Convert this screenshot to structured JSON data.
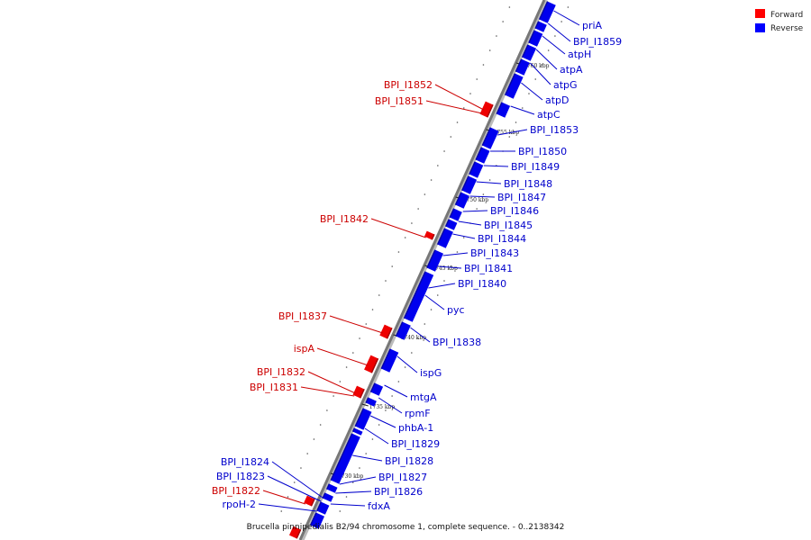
{
  "legend": [
    {
      "label": "Forward",
      "color": "#ff0000"
    },
    {
      "label": "Reverse",
      "color": "#0000ff"
    }
  ],
  "caption": "Brucella pinnipedialis B2/94 chromosome 1, complete sequence. - 0..2138342",
  "kbp_labels": [
    "1760 kbp",
    "1755 kbp",
    "1750 kbp",
    "1745 kbp",
    "1740 kbp",
    "1735 kbp",
    "1730 kbp"
  ],
  "reverse_genes": [
    "priA",
    "BPI_I1859",
    "atpH",
    "atpA",
    "atpG",
    "atpD",
    "atpC",
    "BPI_I1853",
    "BPI_I1850",
    "BPI_I1849",
    "BPI_I1848",
    "BPI_I1847",
    "BPI_I1846",
    "BPI_I1845",
    "BPI_I1844",
    "BPI_I1843",
    "BPI_I1841",
    "BPI_I1840",
    "pyc",
    "BPI_I1838",
    "ispG",
    "mtgA",
    "rpmF",
    "phbA-1",
    "BPI_I1829",
    "BPI_I1828",
    "BPI_I1827",
    "BPI_I1826",
    "fdxA"
  ],
  "forward_genes": [
    "BPI_I1852",
    "BPI_I1851",
    "BPI_I1842",
    "BPI_I1837",
    "ispA",
    "BPI_I1832",
    "BPI_I1831",
    "BPI_I1822"
  ],
  "left_reverse_genes": [
    "BPI_I1824",
    "BPI_I1823",
    "rpoH-2"
  ]
}
